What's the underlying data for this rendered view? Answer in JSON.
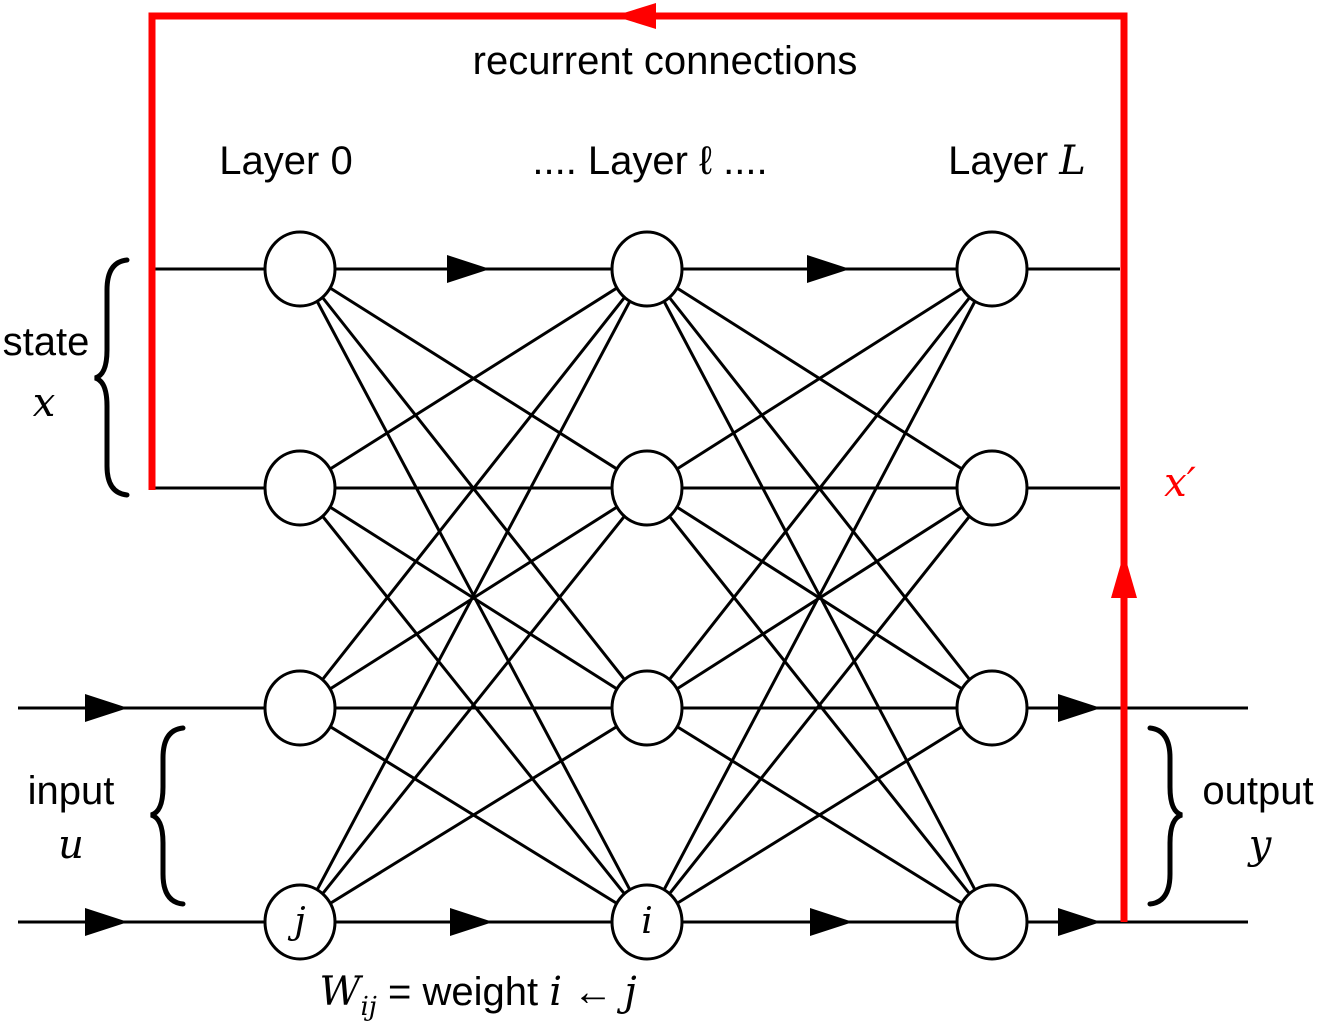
{
  "labels": {
    "recurrent": "recurrent connections",
    "layer0": "Layer 0",
    "layer_l_pre": ".... Layer ",
    "layer_l_sym": "ℓ",
    "layer_l_post": " ....",
    "layerL_pre": "Layer ",
    "layerL_sym": "L",
    "state": "state",
    "state_var": "x",
    "input": "input",
    "input_var": "u",
    "output": "output",
    "output_var": "y",
    "xprime": "x′",
    "node_j": "j",
    "node_i": "i",
    "weight_W": "W",
    "weight_sub": "ij",
    "weight_mid": " = weight ",
    "weight_i": "i",
    "weight_arrow": " ← ",
    "weight_j": "j"
  },
  "colors": {
    "recurrent": "#ff0000",
    "lines": "#000000"
  }
}
